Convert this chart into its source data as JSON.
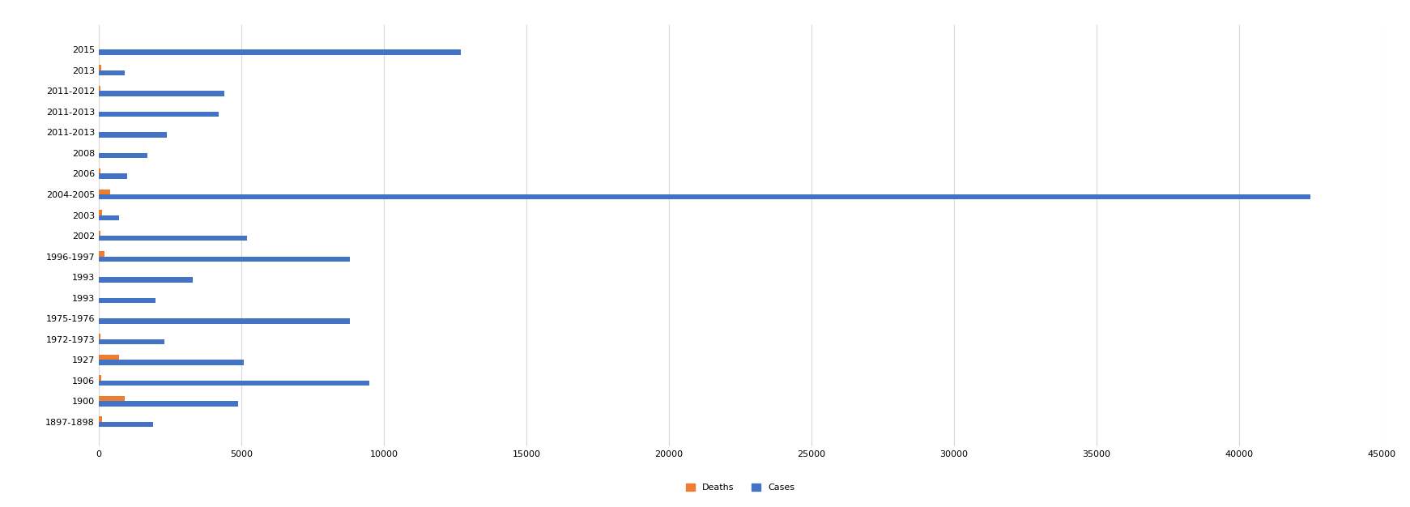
{
  "outbreaks": [
    "2015",
    "2013",
    "2011-2012",
    "2011-2013",
    "2011-2013",
    "2008",
    "2006",
    "2004-2005",
    "2003",
    "2002",
    "1996-1997",
    "1993",
    "1993",
    "1975-1976",
    "1972-1973",
    "1927",
    "1906",
    "1900",
    "1897-1898"
  ],
  "cases": [
    12700,
    900,
    4400,
    4200,
    2400,
    1700,
    1000,
    42500,
    700,
    5200,
    8800,
    3300,
    2000,
    8800,
    2300,
    5100,
    9500,
    4900,
    1900
  ],
  "deaths": [
    0,
    100,
    60,
    0,
    0,
    0,
    60,
    400,
    120,
    60,
    200,
    0,
    0,
    0,
    50,
    700,
    100,
    900,
    120
  ],
  "cases_color": "#4472C4",
  "deaths_color": "#ED7D31",
  "xlim": [
    0,
    45000
  ],
  "xticks": [
    0,
    5000,
    10000,
    15000,
    20000,
    25000,
    30000,
    35000,
    40000,
    45000
  ],
  "xtick_labels": [
    "0",
    "5000",
    "10000",
    "15000",
    "20000",
    "25000",
    "30000",
    "35000",
    "40000",
    "45000"
  ],
  "bar_height": 0.25,
  "background_color": "#ffffff",
  "grid_color": "#d9d9d9"
}
